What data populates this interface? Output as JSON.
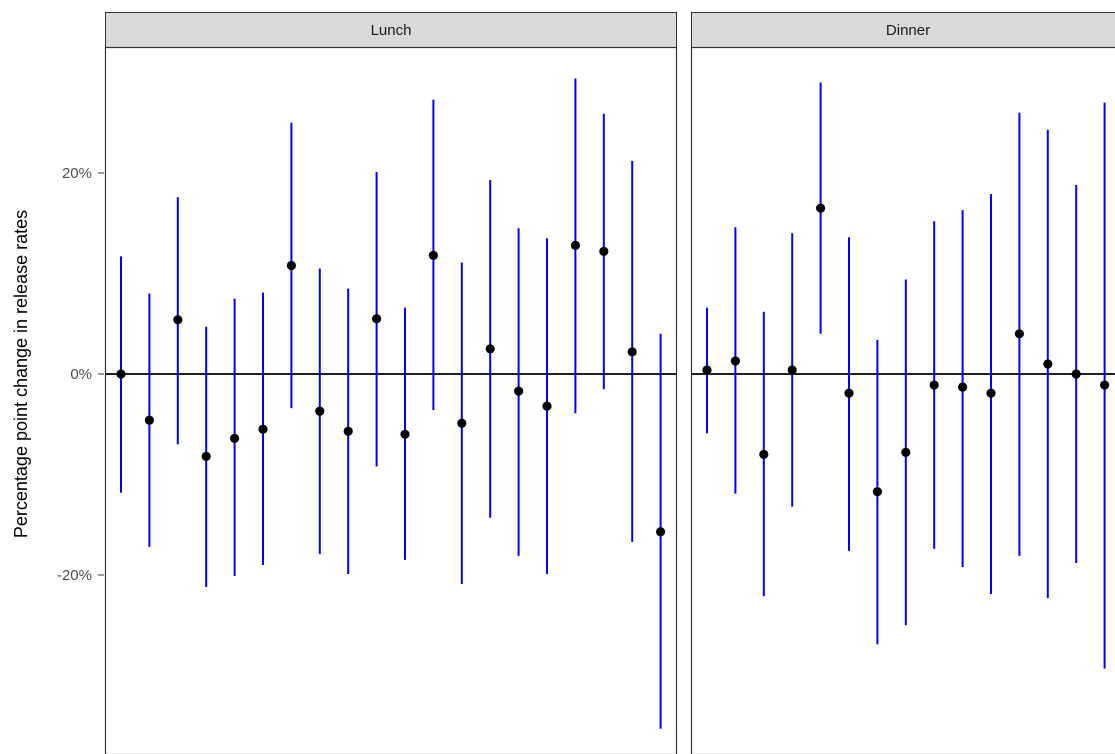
{
  "chart_data": {
    "type": "scatter",
    "subtype": "pointrange",
    "ylabel": "Percentage point change in release rates",
    "xlabel": "",
    "ylim": [
      -36.5,
      32.5
    ],
    "yticks": [
      {
        "value": 20,
        "label": "20%"
      },
      {
        "value": 0,
        "label": "0%"
      },
      {
        "value": -20,
        "label": "-20%"
      }
    ],
    "reference_line": 0,
    "colors": {
      "point": "#000000",
      "interval": "#0000ff",
      "panel_border": "#333333",
      "strip_fill": "#d9d9d9"
    },
    "panels": [
      {
        "label": "Lunch",
        "points": [
          {
            "x": 1,
            "estimate": 0.0,
            "lower": -11.8,
            "upper": 11.7
          },
          {
            "x": 2,
            "estimate": -4.6,
            "lower": -17.2,
            "upper": 8.0
          },
          {
            "x": 3,
            "estimate": 5.4,
            "lower": -7.0,
            "upper": 17.6
          },
          {
            "x": 4,
            "estimate": -8.2,
            "lower": -21.2,
            "upper": 4.7
          },
          {
            "x": 5,
            "estimate": -6.4,
            "lower": -20.1,
            "upper": 7.5
          },
          {
            "x": 6,
            "estimate": -5.5,
            "lower": -19.0,
            "upper": 8.1
          },
          {
            "x": 7,
            "estimate": 10.8,
            "lower": -3.4,
            "upper": 25.0
          },
          {
            "x": 8,
            "estimate": -3.7,
            "lower": -17.9,
            "upper": 10.5
          },
          {
            "x": 9,
            "estimate": -5.7,
            "lower": -19.9,
            "upper": 8.5
          },
          {
            "x": 10,
            "estimate": 5.5,
            "lower": -9.2,
            "upper": 20.1
          },
          {
            "x": 11,
            "estimate": -6.0,
            "lower": -18.5,
            "upper": 6.6
          },
          {
            "x": 12,
            "estimate": 11.8,
            "lower": -3.6,
            "upper": 27.3
          },
          {
            "x": 13,
            "estimate": -4.9,
            "lower": -20.9,
            "upper": 11.1
          },
          {
            "x": 14,
            "estimate": 2.5,
            "lower": -14.3,
            "upper": 19.3
          },
          {
            "x": 15,
            "estimate": -1.7,
            "lower": -18.1,
            "upper": 14.5
          },
          {
            "x": 16,
            "estimate": -3.2,
            "lower": -19.9,
            "upper": 13.5
          },
          {
            "x": 17,
            "estimate": 12.8,
            "lower": -3.9,
            "upper": 29.4
          },
          {
            "x": 18,
            "estimate": 12.2,
            "lower": -1.5,
            "upper": 25.9
          },
          {
            "x": 19,
            "estimate": 2.2,
            "lower": -16.7,
            "upper": 21.2
          },
          {
            "x": 20,
            "estimate": -15.7,
            "lower": -35.3,
            "upper": 4.0
          }
        ]
      },
      {
        "label": "Dinner",
        "points": [
          {
            "x": 1,
            "estimate": 0.4,
            "lower": -5.9,
            "upper": 6.6
          },
          {
            "x": 2,
            "estimate": 1.3,
            "lower": -11.9,
            "upper": 14.6
          },
          {
            "x": 3,
            "estimate": -8.0,
            "lower": -22.1,
            "upper": 6.2
          },
          {
            "x": 4,
            "estimate": 0.4,
            "lower": -13.2,
            "upper": 14.0
          },
          {
            "x": 5,
            "estimate": 16.5,
            "lower": 4.0,
            "upper": 29.0
          },
          {
            "x": 6,
            "estimate": -1.9,
            "lower": -17.6,
            "upper": 13.6
          },
          {
            "x": 7,
            "estimate": -11.7,
            "lower": -26.9,
            "upper": 3.4
          },
          {
            "x": 8,
            "estimate": -7.8,
            "lower": -25.0,
            "upper": 9.4
          },
          {
            "x": 9,
            "estimate": -1.1,
            "lower": -17.4,
            "upper": 15.2
          },
          {
            "x": 10,
            "estimate": -1.3,
            "lower": -19.2,
            "upper": 16.3
          },
          {
            "x": 11,
            "estimate": -1.9,
            "lower": -21.9,
            "upper": 17.9
          },
          {
            "x": 12,
            "estimate": 4.0,
            "lower": -18.1,
            "upper": 26.0
          },
          {
            "x": 13,
            "estimate": 1.0,
            "lower": -22.3,
            "upper": 24.3
          },
          {
            "x": 14,
            "estimate": 0.0,
            "lower": -18.8,
            "upper": 18.8
          },
          {
            "x": 15,
            "estimate": -1.1,
            "lower": -29.3,
            "upper": 27.0
          }
        ]
      }
    ]
  }
}
